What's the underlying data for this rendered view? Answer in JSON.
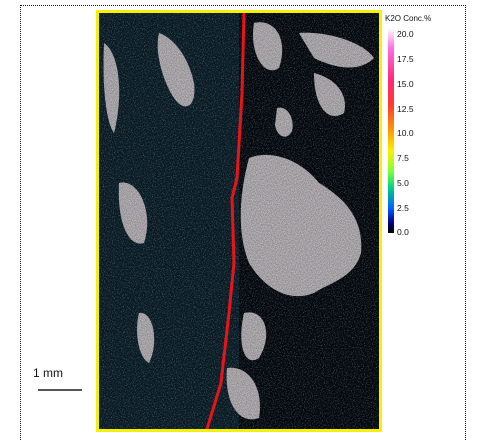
{
  "legend": {
    "title": "K2O  Conc.%",
    "ticks": [
      "20.0",
      "17.5",
      "15.0",
      "12.5",
      "10.0",
      "7.5",
      "5.0",
      "2.5",
      "0.0"
    ],
    "range": [
      0.0,
      20.0
    ]
  },
  "scale": {
    "label": "1 mm"
  },
  "colors": {
    "frame": "#f5f00a",
    "boundary_line": "#e8141a",
    "background": "#05080c"
  }
}
